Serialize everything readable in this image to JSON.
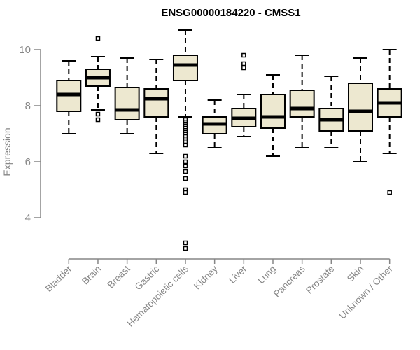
{
  "chart_data": {
    "type": "boxplot",
    "title": "ENSG00000184220 - CMSS1",
    "ylabel": "Expression",
    "xlabel": "",
    "ylim": [
      4,
      10
    ],
    "yticks": [
      4,
      6,
      8,
      10
    ],
    "grid": false,
    "legend": "none",
    "categories": [
      "Bladder",
      "Brain",
      "Breast",
      "Gastric",
      "Hematopoietic cells",
      "Kidney",
      "Liver",
      "Lung",
      "Pancreas",
      "Prostate",
      "Skin",
      "Unknown / Other"
    ],
    "boxes": [
      {
        "category": "Bladder",
        "low": 7.0,
        "q1": 7.8,
        "median": 8.4,
        "q3": 8.9,
        "high": 9.6,
        "outliers": []
      },
      {
        "category": "Brain",
        "low": 7.85,
        "q1": 8.7,
        "median": 9.0,
        "q3": 9.3,
        "high": 9.75,
        "outliers": [
          10.4,
          7.7,
          7.5
        ]
      },
      {
        "category": "Breast",
        "low": 7.0,
        "q1": 7.5,
        "median": 7.85,
        "q3": 8.65,
        "high": 9.7,
        "outliers": []
      },
      {
        "category": "Gastric",
        "low": 6.3,
        "q1": 7.6,
        "median": 8.25,
        "q3": 8.6,
        "high": 9.65,
        "outliers": []
      },
      {
        "category": "Hematopoietic cells",
        "low": 7.6,
        "q1": 8.9,
        "median": 9.45,
        "q3": 9.8,
        "high": 10.7,
        "outliers": [
          7.5,
          7.42,
          7.35,
          7.28,
          7.2,
          7.12,
          7.05,
          6.98,
          6.9,
          6.82,
          6.75,
          6.68,
          6.6,
          6.2,
          6.0,
          5.85,
          5.65,
          5.4,
          5.0,
          4.9,
          3.1,
          2.9
        ]
      },
      {
        "category": "Kidney",
        "low": 6.5,
        "q1": 7.0,
        "median": 7.35,
        "q3": 7.6,
        "high": 8.2,
        "outliers": []
      },
      {
        "category": "Liver",
        "low": 6.9,
        "q1": 7.25,
        "median": 7.55,
        "q3": 7.9,
        "high": 8.4,
        "outliers": [
          9.8,
          9.5,
          9.35
        ]
      },
      {
        "category": "Lung",
        "low": 6.2,
        "q1": 7.2,
        "median": 7.6,
        "q3": 8.4,
        "high": 9.1,
        "outliers": []
      },
      {
        "category": "Pancreas",
        "low": 6.5,
        "q1": 7.6,
        "median": 7.9,
        "q3": 8.55,
        "high": 9.8,
        "outliers": []
      },
      {
        "category": "Prostate",
        "low": 6.5,
        "q1": 7.1,
        "median": 7.5,
        "q3": 7.9,
        "high": 9.05,
        "outliers": []
      },
      {
        "category": "Skin",
        "low": 6.0,
        "q1": 7.1,
        "median": 7.8,
        "q3": 8.8,
        "high": 9.7,
        "outliers": []
      },
      {
        "category": "Unknown / Other",
        "low": 6.3,
        "q1": 7.6,
        "median": 8.1,
        "q3": 8.6,
        "high": 10.0,
        "outliers": [
          4.9
        ]
      }
    ],
    "colors": {
      "box_fill": "#EDE8D0",
      "box_stroke": "#000000",
      "median": "#000000",
      "whisker": "#000000",
      "outlier": "#000000",
      "axis": "#868686",
      "tick_text": "#868686",
      "title_text": "#000000",
      "background": "#FFFFFF"
    }
  }
}
